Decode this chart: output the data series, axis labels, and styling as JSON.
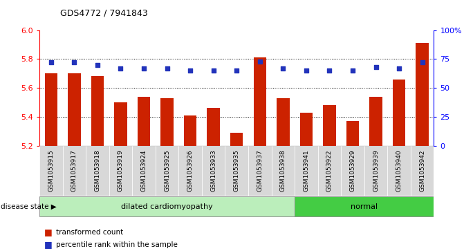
{
  "title": "GDS4772 / 7941843",
  "samples": [
    "GSM1053915",
    "GSM1053917",
    "GSM1053918",
    "GSM1053919",
    "GSM1053924",
    "GSM1053925",
    "GSM1053926",
    "GSM1053933",
    "GSM1053935",
    "GSM1053937",
    "GSM1053938",
    "GSM1053941",
    "GSM1053922",
    "GSM1053929",
    "GSM1053939",
    "GSM1053940",
    "GSM1053942"
  ],
  "bar_values": [
    5.7,
    5.7,
    5.68,
    5.5,
    5.54,
    5.53,
    5.41,
    5.46,
    5.29,
    5.81,
    5.53,
    5.43,
    5.48,
    5.37,
    5.54,
    5.66,
    5.91
  ],
  "percentile_values": [
    72,
    72,
    70,
    67,
    67,
    67,
    65,
    65,
    65,
    73,
    67,
    65,
    65,
    65,
    68,
    67,
    72
  ],
  "groups": [
    "dilated cardiomyopathy",
    "dilated cardiomyopathy",
    "dilated cardiomyopathy",
    "dilated cardiomyopathy",
    "dilated cardiomyopathy",
    "dilated cardiomyopathy",
    "dilated cardiomyopathy",
    "dilated cardiomyopathy",
    "dilated cardiomyopathy",
    "dilated cardiomyopathy",
    "dilated cardiomyopathy",
    "normal",
    "normal",
    "normal",
    "normal",
    "normal",
    "normal"
  ],
  "ylim": [
    5.2,
    6.0
  ],
  "yticks": [
    5.2,
    5.4,
    5.6,
    5.8,
    6.0
  ],
  "right_yticks": [
    0,
    25,
    50,
    75,
    100
  ],
  "right_ytick_labels": [
    "0",
    "25",
    "50",
    "75",
    "100%"
  ],
  "bar_color": "#cc2200",
  "dot_color": "#2233bb",
  "dilated_color": "#bbeebb",
  "normal_color": "#44cc44",
  "bar_bottom": 5.2,
  "dilated_label": "dilated cardiomyopathy",
  "normal_label": "normal",
  "disease_state_label": "disease state",
  "legend_label_bar": "transformed count",
  "legend_label_dot": "percentile rank within the sample"
}
